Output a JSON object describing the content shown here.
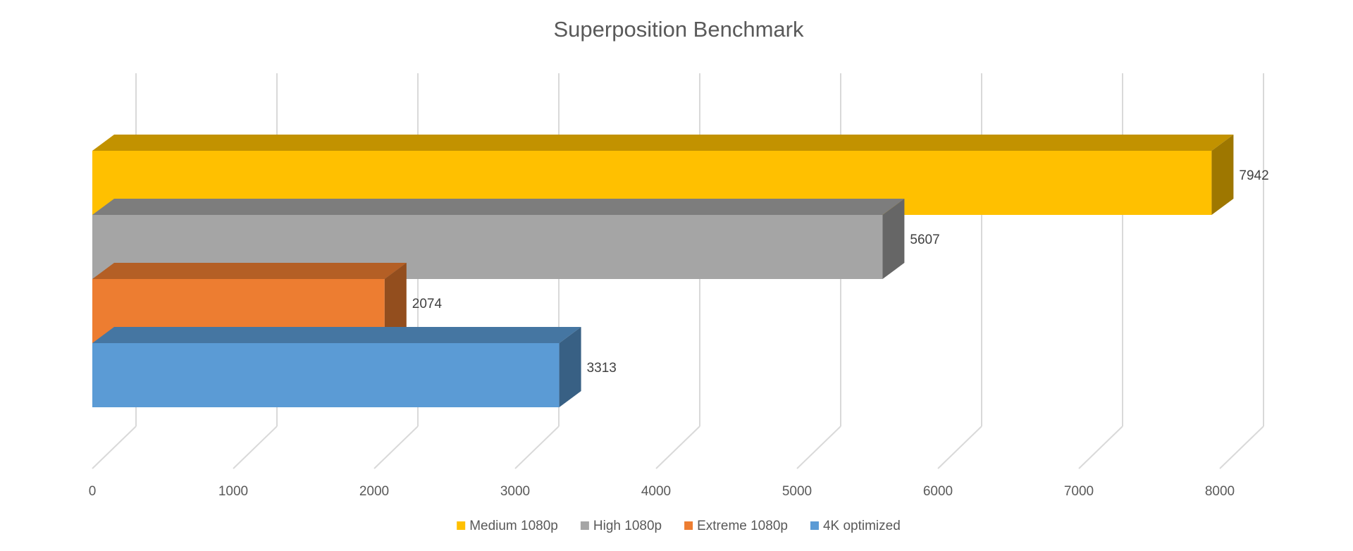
{
  "chart_data": {
    "type": "bar",
    "orientation": "horizontal",
    "style": "3d",
    "title": "Superposition Benchmark",
    "xlabel": "",
    "ylabel": "",
    "xlim": [
      0,
      8000
    ],
    "x_ticks": [
      0,
      1000,
      2000,
      3000,
      4000,
      5000,
      6000,
      7000,
      8000
    ],
    "grid": true,
    "legend_position": "bottom",
    "series": [
      {
        "name": "Medium 1080p",
        "value": 7942,
        "label": "7942",
        "color": "#FFC000"
      },
      {
        "name": "High 1080p",
        "value": 5607,
        "label": "5607",
        "color": "#A5A5A5"
      },
      {
        "name": "Extreme 1080p",
        "value": 2074,
        "label": "2074",
        "color": "#ED7D31"
      },
      {
        "name": "4K optimized",
        "value": 3313,
        "label": "3313",
        "color": "#5B9BD5"
      }
    ]
  }
}
